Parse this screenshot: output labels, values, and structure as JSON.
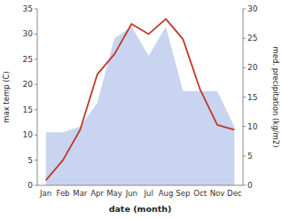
{
  "chart_data": {
    "type": "line",
    "xlabel": "date (month)",
    "ylabel": "max temp (C)",
    "y2label": "med. precipitation (kg/m2)",
    "categories": [
      "Jan",
      "Feb",
      "Mar",
      "Apr",
      "May",
      "Jun",
      "Jul",
      "Aug",
      "Sep",
      "Oct",
      "Nov",
      "Dec"
    ],
    "series": [
      {
        "type": "area",
        "axis": "y2",
        "color": "#c8d4f0",
        "values": [
          9,
          9,
          10,
          14,
          25,
          27,
          22,
          27,
          16,
          16,
          16,
          10
        ]
      },
      {
        "type": "line",
        "color": "#c0392b",
        "values": [
          1,
          5,
          11,
          22,
          26,
          32,
          30,
          33,
          29,
          19,
          12,
          11
        ]
      }
    ],
    "ylim": [
      0,
      35
    ],
    "yticks": [
      0,
      5,
      10,
      15,
      20,
      25,
      30,
      35
    ],
    "y2lim": [
      0,
      30
    ],
    "y2ticks": [
      0,
      5,
      10,
      15,
      20,
      25,
      30
    ],
    "grid": false
  }
}
